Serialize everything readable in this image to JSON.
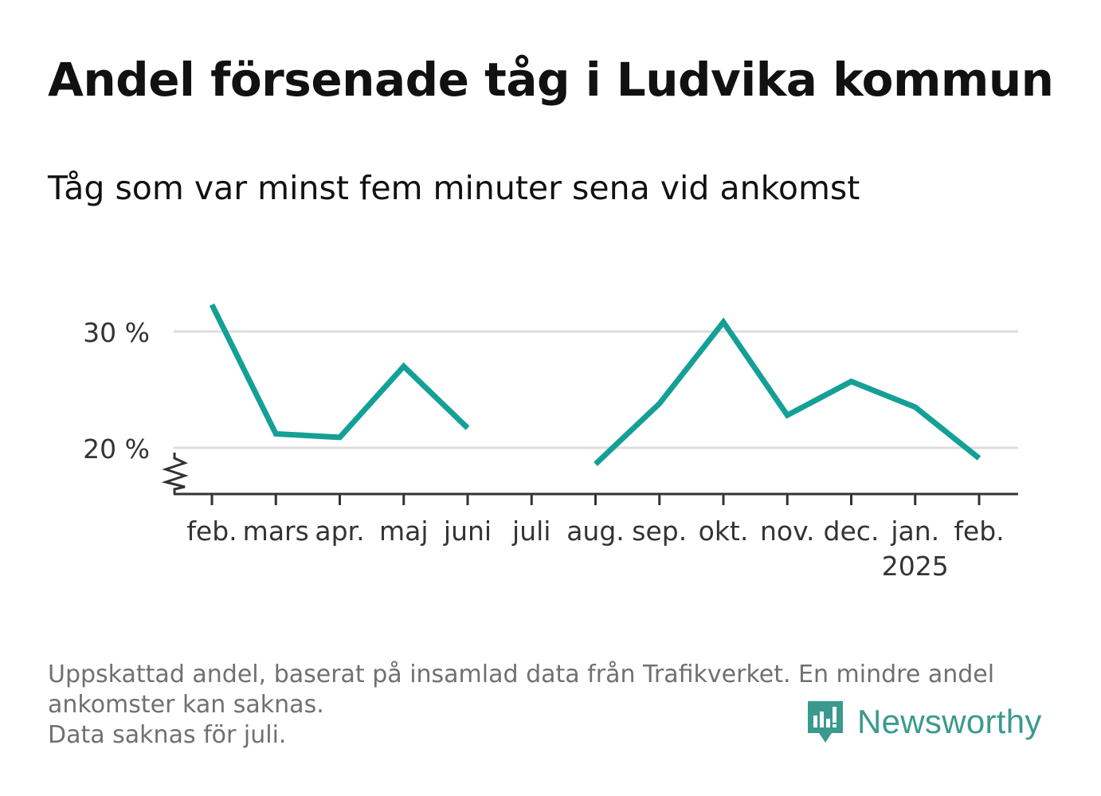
{
  "title": "Andel försenade tåg i Ludvika kommun",
  "subtitle": "Tåg som var minst fem minuter sena vid ankomst",
  "notes": [
    "Uppskattad andel, baserat på insamlad data från Trafikverket. En mindre andel ankomster kan saknas.",
    "Data saknas för juli."
  ],
  "brand": {
    "name": "Newsworthy",
    "icon": "newsworthy-logo-icon"
  },
  "colors": {
    "line": "#14a096",
    "grid": "#dddddd",
    "axis": "#333333",
    "brand": "#3a9a8d"
  },
  "chart_data": {
    "type": "line",
    "title": "Andel försenade tåg i Ludvika kommun",
    "subtitle": "Tåg som var minst fem minuter sena vid ankomst",
    "categories": [
      "feb.",
      "mars",
      "apr.",
      "maj",
      "juni",
      "juli",
      "aug.",
      "sep.",
      "okt.",
      "nov.",
      "dec.",
      "jan.",
      "feb."
    ],
    "category_sublabels": [
      "",
      "",
      "",
      "",
      "",
      "",
      "",
      "",
      "",
      "",
      "",
      "2025",
      ""
    ],
    "values": [
      32.3,
      21.2,
      20.9,
      27.0,
      21.7,
      null,
      18.6,
      23.8,
      30.8,
      22.8,
      25.7,
      23.5,
      19.1
    ],
    "yticks": [
      20,
      30
    ],
    "ytick_labels": [
      "20 %",
      "30 %"
    ],
    "ylim": [
      16,
      33.5
    ],
    "y_axis_break": true,
    "grid": true,
    "xlabel": "",
    "ylabel": ""
  }
}
